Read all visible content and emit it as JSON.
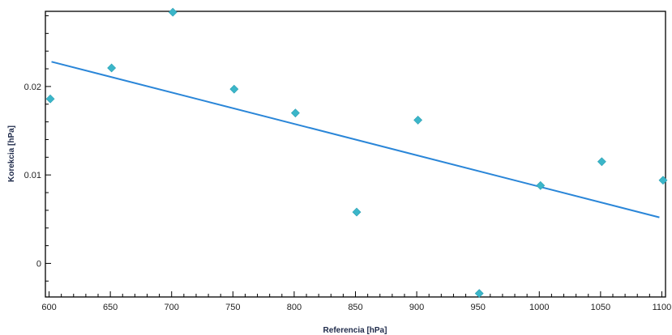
{
  "chart_data": {
    "type": "scatter",
    "xlabel": "Referencia [hPa]",
    "ylabel": "Korekcia [hPa]",
    "xlim": [
      597,
      1103
    ],
    "ylim": [
      -0.0038,
      0.0285
    ],
    "x_ticks": [
      "600",
      "650",
      "700",
      "750",
      "800",
      "850",
      "900",
      "950",
      "1000",
      "1050",
      "1100"
    ],
    "y_ticks": [
      "0",
      "0.01",
      "0.02"
    ],
    "grid": false,
    "marker_color": "#3bb6c9",
    "line_color": "#2a86d8",
    "series": [
      {
        "points": [
          {
            "x": 601,
            "y": 0.0186
          },
          {
            "x": 651,
            "y": 0.0221
          },
          {
            "x": 701,
            "y": 0.0284
          },
          {
            "x": 751,
            "y": 0.0197
          },
          {
            "x": 801,
            "y": 0.017
          },
          {
            "x": 851,
            "y": 0.0058
          },
          {
            "x": 901,
            "y": 0.0162
          },
          {
            "x": 951,
            "y": -0.0034
          },
          {
            "x": 1001,
            "y": 0.0088
          },
          {
            "x": 1051,
            "y": 0.0115
          },
          {
            "x": 1101,
            "y": 0.0094
          }
        ]
      }
    ],
    "trendline": {
      "x": [
        602,
        1098
      ],
      "y": [
        0.0228,
        0.0052
      ]
    }
  }
}
